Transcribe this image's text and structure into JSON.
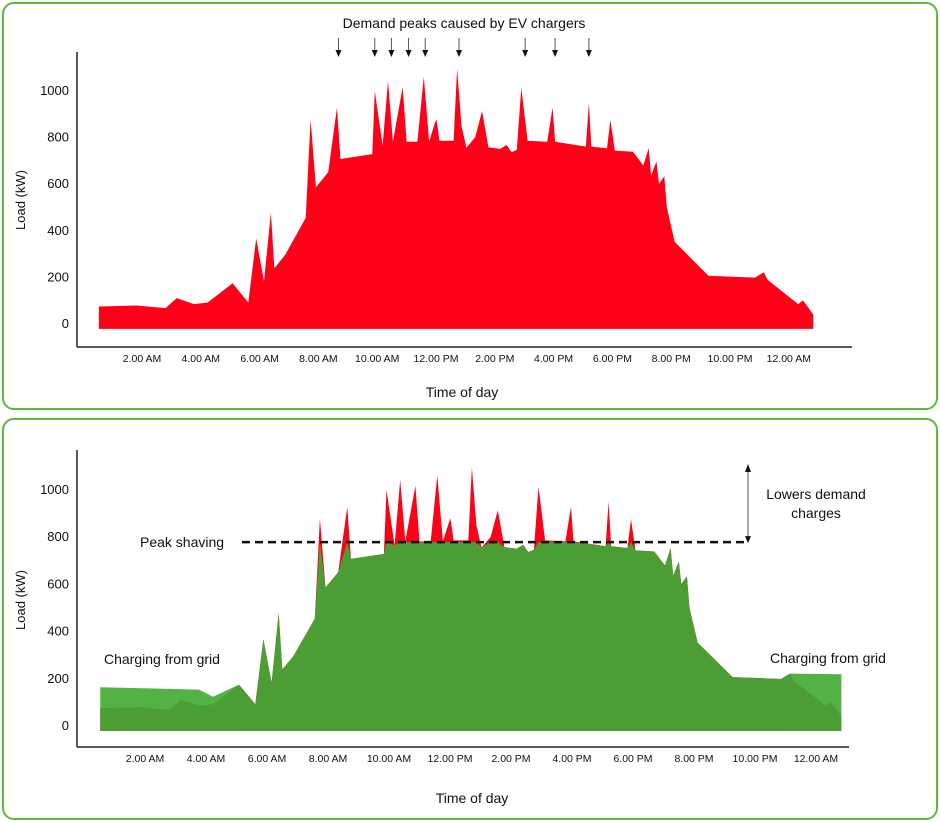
{
  "colors": {
    "original_load": "#ff0019",
    "shaved_load": "#4a9e34",
    "grid_charging": "#52b244",
    "panel_border": "#5fb83f"
  },
  "chart_data": [
    {
      "type": "area",
      "title": "Demand peaks caused by EV chargers",
      "xlabel": "Time of day",
      "ylabel": "Load (kW)",
      "ylim": [
        -100,
        1160
      ],
      "y_ticks": [
        0,
        200,
        400,
        600,
        800,
        1000
      ],
      "x_ticks": [
        "2.00 AM",
        "4.00 AM",
        "6.00 AM",
        "8.00 AM",
        "10.00 AM",
        "12.00 PM",
        "2.00 PM",
        "4.00 PM",
        "6.00 PM",
        "8.00 PM",
        "10.00 PM",
        "12.00 AM"
      ],
      "grid": false,
      "peak_arrows_at": [
        "08:41",
        "09:55",
        "10:29",
        "11:04",
        "11:38",
        "12:47",
        "15:02",
        "16:03",
        "17:12"
      ],
      "series": [
        {
          "key": "load",
          "color": "#ff0019",
          "x": [
            "00:32",
            "01:49",
            "02:48",
            "03:11",
            "03:46",
            "04:14",
            "05:05",
            "05:37",
            "05:53",
            "06:09",
            "06:23",
            "06:30",
            "06:52",
            "07:34",
            "07:44",
            "07:55",
            "08:20",
            "08:38",
            "08:45",
            "09:50",
            "09:55",
            "10:11",
            "10:22",
            "10:32",
            "10:52",
            "11:00",
            "11:22",
            "11:35",
            "11:46",
            "11:57",
            "12:01",
            "12:07",
            "12:36",
            "12:43",
            "12:52",
            "13:02",
            "13:20",
            "13:34",
            "13:47",
            "14:11",
            "14:24",
            "14:34",
            "14:45",
            "14:54",
            "15:07",
            "15:47",
            "15:58",
            "16:03",
            "17:06",
            "17:12",
            "17:17",
            "17:49",
            "17:56",
            "18:05",
            "18:42",
            "19:03",
            "19:14",
            "19:19",
            "19:30",
            "19:35",
            "19:46",
            "19:51",
            "20:07",
            "21:16",
            "22:51",
            "23:09",
            "23:17",
            "24:19",
            "24:29",
            "24:50"
          ],
          "y": [
            71,
            75,
            64,
            107,
            81,
            88,
            171,
            88,
            363,
            178,
            474,
            235,
            292,
            451,
            875,
            583,
            647,
            925,
            704,
            725,
            996,
            761,
            1038,
            778,
            1013,
            778,
            778,
            1057,
            778,
            853,
            875,
            782,
            782,
            1091,
            846,
            752,
            797,
            910,
            754,
            747,
            764,
            733,
            743,
            1010,
            782,
            778,
            925,
            778,
            757,
            946,
            757,
            750,
            872,
            740,
            735,
            676,
            750,
            633,
            693,
            597,
            630,
            498,
            349,
            203,
            195,
            218,
            185,
            81,
            97,
            36
          ]
        }
      ]
    },
    {
      "type": "area",
      "xlabel": "Time of day",
      "ylabel": "Load (kW)",
      "ylim": [
        -100,
        1160
      ],
      "y_ticks": [
        0,
        200,
        400,
        600,
        800,
        1000
      ],
      "x_ticks": [
        "2.00 AM",
        "4.00 AM",
        "6.00 AM",
        "8.00 AM",
        "10.00 AM",
        "12.00 PM",
        "2.00 PM",
        "4.00 PM",
        "6.00 PM",
        "8.00 PM",
        "10.00 PM",
        "12.00 AM"
      ],
      "grid": false,
      "peak_shaving_kw": 775,
      "annotations": {
        "peak_shaving": "Peak shaving",
        "lowers_line1": "Lowers demand",
        "lowers_line2": "charges",
        "charging_left": "Charging from grid",
        "charging_right": "Charging from grid"
      },
      "grid_charging": {
        "morning": {
          "x": [
            "00:32",
            "03:46",
            "04:14",
            "05:05"
          ],
          "y": [
            160,
            150,
            120,
            171
          ]
        },
        "night": {
          "x": [
            "22:51",
            "23:09",
            "24:50"
          ],
          "y": [
            195,
            218,
            215
          ]
        }
      }
    }
  ]
}
